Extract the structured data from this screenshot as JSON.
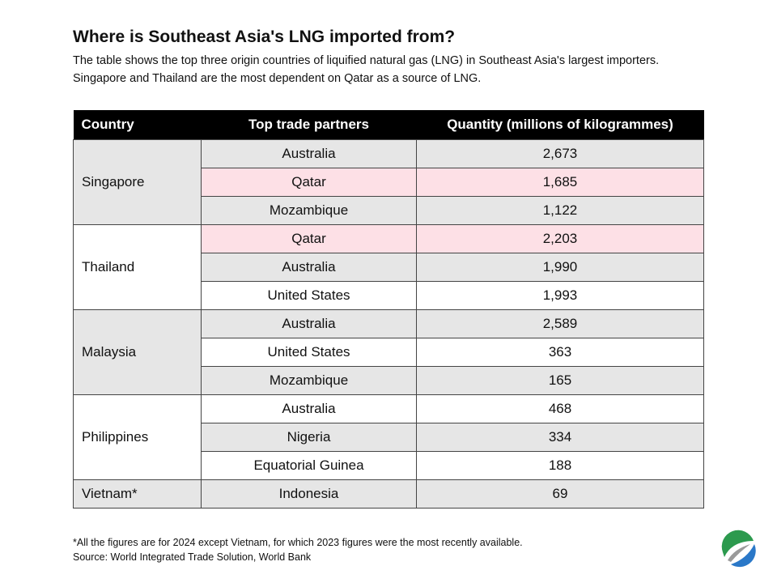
{
  "title": "Where is Southeast Asia's LNG imported from?",
  "subtitle": "The table shows the top three origin countries of liquified natural gas (LNG) in Southeast Asia's largest importers. Singapore and Thailand are the most dependent on Qatar as a source of LNG.",
  "colors": {
    "header": "#000000",
    "highlight": "#fde0e6",
    "shade": "#e6e6e6"
  },
  "chart_data": {
    "type": "table",
    "columns": [
      "Country",
      "Top trade partners",
      "Quantity (millions of kilogrammes)"
    ],
    "groups": [
      {
        "country": "Singapore",
        "shade": "gray",
        "rows": [
          {
            "partner": "Australia",
            "quantity": "2,673",
            "shade": "gray"
          },
          {
            "partner": "Qatar",
            "quantity": "1,685",
            "shade": "pink"
          },
          {
            "partner": "Mozambique",
            "quantity": "1,122",
            "shade": "gray"
          }
        ]
      },
      {
        "country": "Thailand",
        "shade": "white",
        "rows": [
          {
            "partner": "Qatar",
            "quantity": "2,203",
            "shade": "pink"
          },
          {
            "partner": "Australia",
            "quantity": "1,990",
            "shade": "gray"
          },
          {
            "partner": "United States",
            "quantity": "1,993",
            "shade": "white"
          }
        ]
      },
      {
        "country": "Malaysia",
        "shade": "gray",
        "rows": [
          {
            "partner": "Australia",
            "quantity": "2,589",
            "shade": "gray"
          },
          {
            "partner": "United States",
            "quantity": "363",
            "shade": "white"
          },
          {
            "partner": "Mozambique",
            "quantity": "165",
            "shade": "gray"
          }
        ]
      },
      {
        "country": "Philippines",
        "shade": "white",
        "rows": [
          {
            "partner": "Australia",
            "quantity": "468",
            "shade": "white"
          },
          {
            "partner": "Nigeria",
            "quantity": "334",
            "shade": "gray"
          },
          {
            "partner": "Equatorial Guinea",
            "quantity": "188",
            "shade": "white"
          }
        ]
      },
      {
        "country": "Vietnam*",
        "shade": "gray",
        "rows": [
          {
            "partner": "Indonesia",
            "quantity": "69",
            "shade": "gray"
          }
        ]
      }
    ]
  },
  "footnote": "*All the figures are for 2024 except Vietnam, for which 2023 figures were the most recently available.",
  "source": "Source: World Integrated Trade Solution, World Bank",
  "logo_icon": "leaf-circle-logo"
}
